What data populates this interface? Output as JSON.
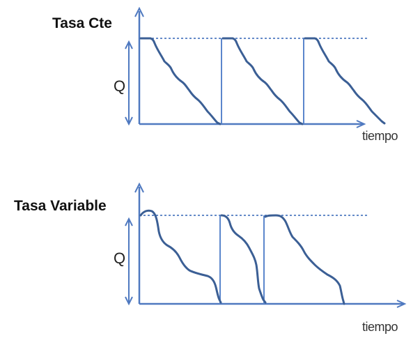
{
  "colors": {
    "axis": "#4f79c0",
    "vertical_line": "#5b86cc",
    "dotted_line": "#4f79c0",
    "curve": "#3b5f95",
    "text": "#111111"
  },
  "panels": [
    {
      "title": "Tasa Cte",
      "q_label": "Q",
      "x_label": "tiempo"
    },
    {
      "title": "Tasa Variable",
      "q_label": "Q",
      "x_label": "tiempo"
    }
  ]
}
